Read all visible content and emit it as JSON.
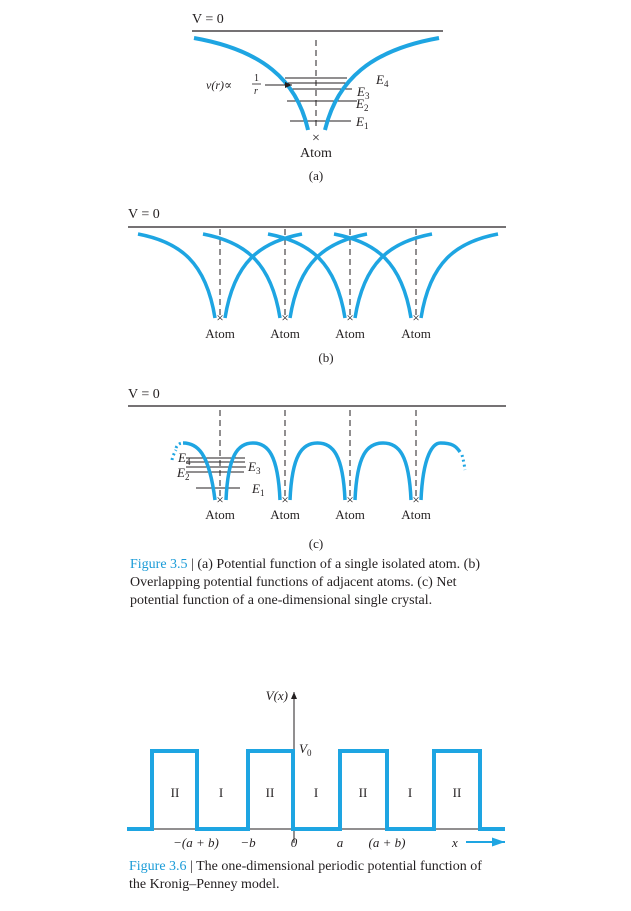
{
  "colors": {
    "curve": "#1ea5e2",
    "line": "#231f20",
    "accent": "#1a9bd7"
  },
  "fig35": {
    "a": {
      "v0": "V = 0",
      "v_prefix": "v(r)∝",
      "frac_num": "1",
      "frac_den": "r",
      "levels": [
        {
          "main": "E",
          "sub": "4"
        },
        {
          "main": "E",
          "sub": "3"
        },
        {
          "main": "E",
          "sub": "2"
        },
        {
          "main": "E",
          "sub": "1"
        }
      ],
      "atom_mark": "×",
      "atom": "Atom",
      "sub_label": "(a)"
    },
    "b": {
      "v0": "V = 0",
      "atoms": [
        "Atom",
        "Atom",
        "Atom",
        "Atom"
      ],
      "atom_mark": "×",
      "sub_label": "(b)"
    },
    "c": {
      "v0": "V = 0",
      "levels": [
        {
          "main": "E",
          "sub": "4"
        },
        {
          "main": "E",
          "sub": "3"
        },
        {
          "main": "E",
          "sub": "2"
        },
        {
          "main": "E",
          "sub": "1"
        }
      ],
      "atoms": [
        "Atom",
        "Atom",
        "Atom",
        "Atom"
      ],
      "atom_mark": "×",
      "sub_label": "(c)"
    },
    "caption_num": "Figure 3.5",
    "caption_text": " | (a) Potential function of a single isolated atom. (b) Overlapping potential functions of adjacent atoms. (c) Net potential function of a one-dimensional single crystal."
  },
  "fig36": {
    "v_axis": "V(x)",
    "v0_main": "V",
    "v0_sub": "0",
    "regions": [
      "II",
      "I",
      "II",
      "I",
      "II",
      "I",
      "II"
    ],
    "x_ticks": [
      "−(a + b)",
      "−b",
      "0",
      "a",
      "(a + b)"
    ],
    "x_axis": "x",
    "caption_num": "Figure 3.6",
    "caption_text": " | The one-dimensional periodic potential function of the Kronig–Penney model."
  }
}
